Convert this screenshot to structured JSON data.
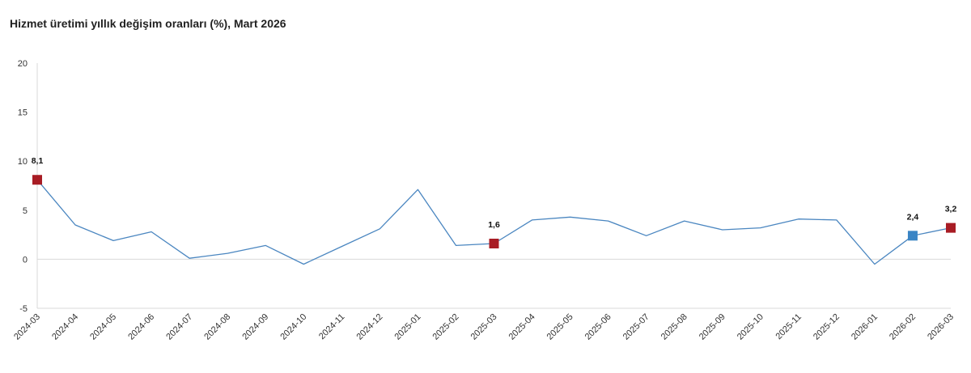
{
  "chart_data": {
    "type": "line",
    "title": "Hizmet üretimi yıllık değişim oranları (%), Mart 2026",
    "xlabel": "",
    "ylabel": "",
    "ylim": [
      -5,
      20
    ],
    "yticks": [
      -5,
      0,
      5,
      10,
      15,
      20
    ],
    "grid": false,
    "x": [
      "2024-03",
      "2024-04",
      "2024-05",
      "2024-06",
      "2024-07",
      "2024-08",
      "2024-09",
      "2024-10",
      "2024-11",
      "2024-12",
      "2025-01",
      "2025-02",
      "2025-03",
      "2025-04",
      "2025-05",
      "2025-06",
      "2025-07",
      "2025-08",
      "2025-09",
      "2025-10",
      "2025-11",
      "2025-12",
      "2026-01",
      "2026-02",
      "2026-03"
    ],
    "series": [
      {
        "color": "#4a86c0",
        "values": [
          8.1,
          3.5,
          1.9,
          2.8,
          0.1,
          0.6,
          1.4,
          -0.5,
          1.3,
          3.1,
          7.1,
          1.4,
          1.6,
          4.0,
          4.3,
          3.9,
          2.4,
          3.9,
          3.0,
          3.2,
          4.1,
          4.0,
          -0.5,
          2.4,
          3.2
        ]
      }
    ],
    "highlights": [
      {
        "index": 0,
        "label": "8,1",
        "color": "#a81c24"
      },
      {
        "index": 12,
        "label": "1,6",
        "color": "#a81c24"
      },
      {
        "index": 23,
        "label": "2,4",
        "color": "#3a85c5"
      },
      {
        "index": 24,
        "label": "3,2",
        "color": "#a81c24"
      }
    ],
    "axis_color": "#d9d9d9"
  }
}
